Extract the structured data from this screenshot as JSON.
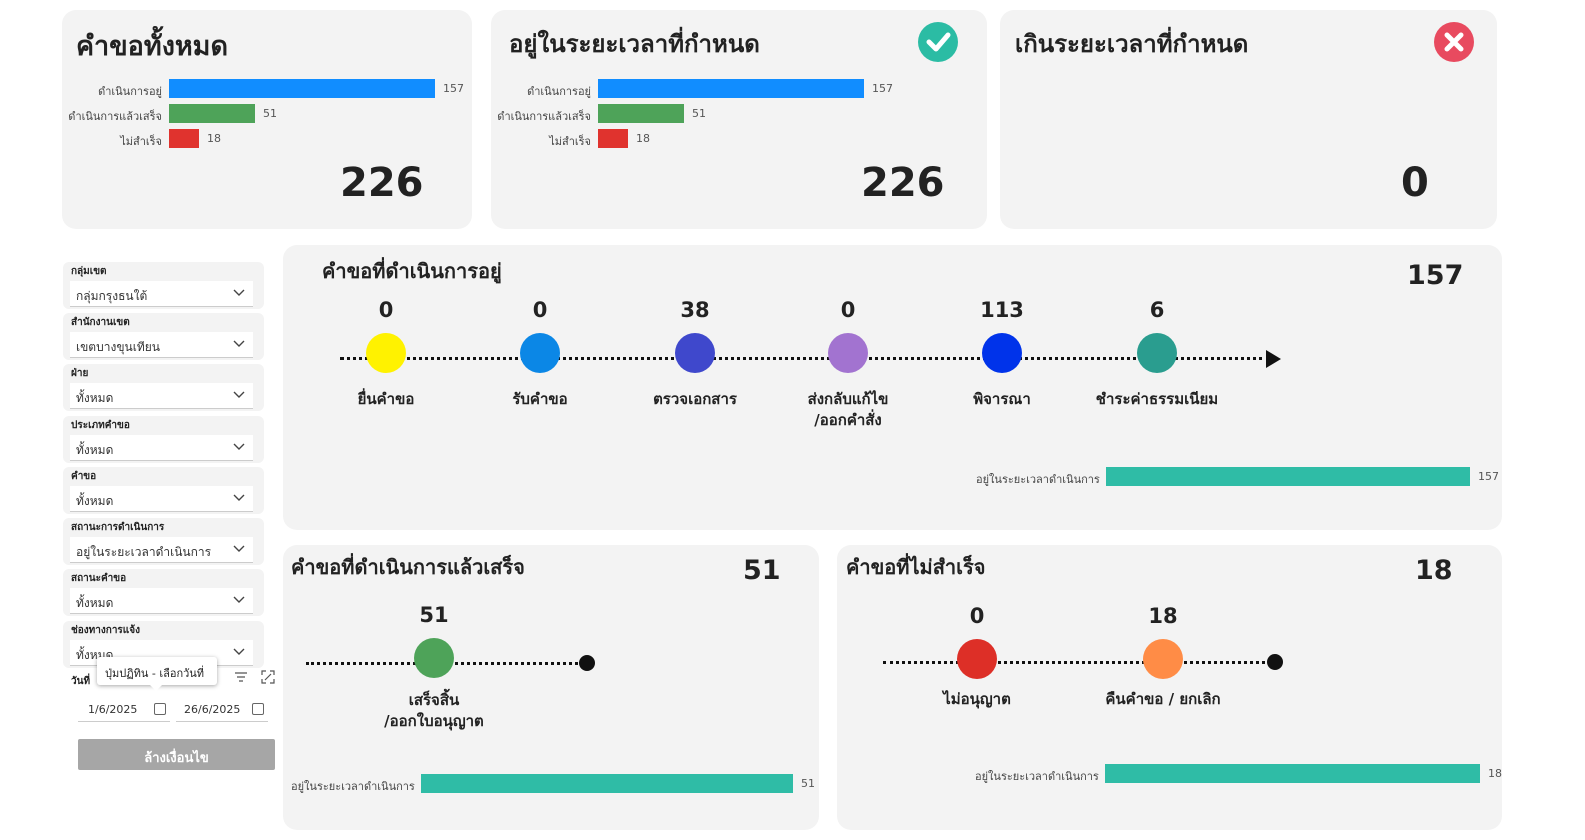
{
  "summary": {
    "total": {
      "title": "คำขอทั้งหมด",
      "total": "226",
      "bars": [
        {
          "label": "ดำเนินการอยู่",
          "value": 157,
          "color": "#118dff"
        },
        {
          "label": "ดำเนินการแล้วเสร็จ",
          "value": 51,
          "color": "#4ea359"
        },
        {
          "label": "ไม่สำเร็จ",
          "value": 18,
          "color": "#e0332e"
        }
      ]
    },
    "ontime": {
      "title": "อยู่ในระยะเวลาที่กำหนด",
      "total": "226",
      "bars": [
        {
          "label": "ดำเนินการอยู่",
          "value": 157,
          "color": "#118dff"
        },
        {
          "label": "ดำเนินการแล้วเสร็จ",
          "value": 51,
          "color": "#4ea359"
        },
        {
          "label": "ไม่สำเร็จ",
          "value": 18,
          "color": "#e0332e"
        }
      ]
    },
    "overdue": {
      "title": "เกินระยะเวลาที่กำหนด",
      "total": "0"
    }
  },
  "filters": [
    {
      "label": "กลุ่มเขต",
      "value": "กลุ่มกรุงธนใต้"
    },
    {
      "label": "สำนักงานเขต",
      "value": "เขตบางขุนเทียน"
    },
    {
      "label": "ฝ่าย",
      "value": "ทั้งหมด"
    },
    {
      "label": "ประเภทคำขอ",
      "value": "ทั้งหมด"
    },
    {
      "label": "คำขอ",
      "value": "ทั้งหมด"
    },
    {
      "label": "สถานะการดำเนินการ",
      "value": "อยู่ในระยะเวลาดำเนินการ"
    },
    {
      "label": "สถานะคำขอ",
      "value": "ทั้งหมด"
    },
    {
      "label": "ช่องทางการแจ้ง",
      "value": "ทั้งหมด"
    }
  ],
  "date_filter": {
    "label": "วันที่",
    "tooltip": "ปุ่มปฏิทิน - เลือกวันที่",
    "start": "1/6/2025",
    "end": "26/6/2025"
  },
  "clear_button": "ล้างเงื่อนไข",
  "in_progress": {
    "title": "คำขอที่ดำเนินการอยู่",
    "total": "157",
    "stages": [
      {
        "value": "0",
        "label": "ยื่นคำขอ",
        "color": "#fff200"
      },
      {
        "value": "0",
        "label": "รับคำขอ",
        "color": "#0b87e6"
      },
      {
        "value": "38",
        "label": "ตรวจเอกสาร",
        "color": "#3f48cc"
      },
      {
        "value": "0",
        "label": "ส่งกลับแก้ไข\n/ออกคำสั่ง",
        "color": "#a273d0"
      },
      {
        "value": "113",
        "label": "พิจารณา",
        "color": "#0033ea"
      },
      {
        "value": "6",
        "label": "ชำระค่าธรรมเนียม",
        "color": "#2a9d8f"
      }
    ],
    "status_bar": {
      "label": "อยู่ในระยะเวลาดำเนินการ",
      "value": 157,
      "color": "#2fbca6"
    }
  },
  "completed": {
    "title": "คำขอที่ดำเนินการแล้วเสร็จ",
    "total": "51",
    "stages": [
      {
        "value": "51",
        "label": "เสร็จสิ้น\n/ออกใบอนุญาต",
        "color": "#4ea359"
      }
    ],
    "status_bar": {
      "label": "อยู่ในระยะเวลาดำเนินการ",
      "value": 51,
      "color": "#2fbca6"
    }
  },
  "failed": {
    "title": "คำขอที่ไม่สำเร็จ",
    "total": "18",
    "stages": [
      {
        "value": "0",
        "label": "ไม่อนุญาต",
        "color": "#dd2f27"
      },
      {
        "value": "18",
        "label": "คืนคำขอ / ยกเลิก",
        "color": "#ff8c46"
      }
    ],
    "status_bar": {
      "label": "อยู่ในระยะเวลาดำเนินการ",
      "value": 18,
      "color": "#2fbca6"
    }
  }
}
